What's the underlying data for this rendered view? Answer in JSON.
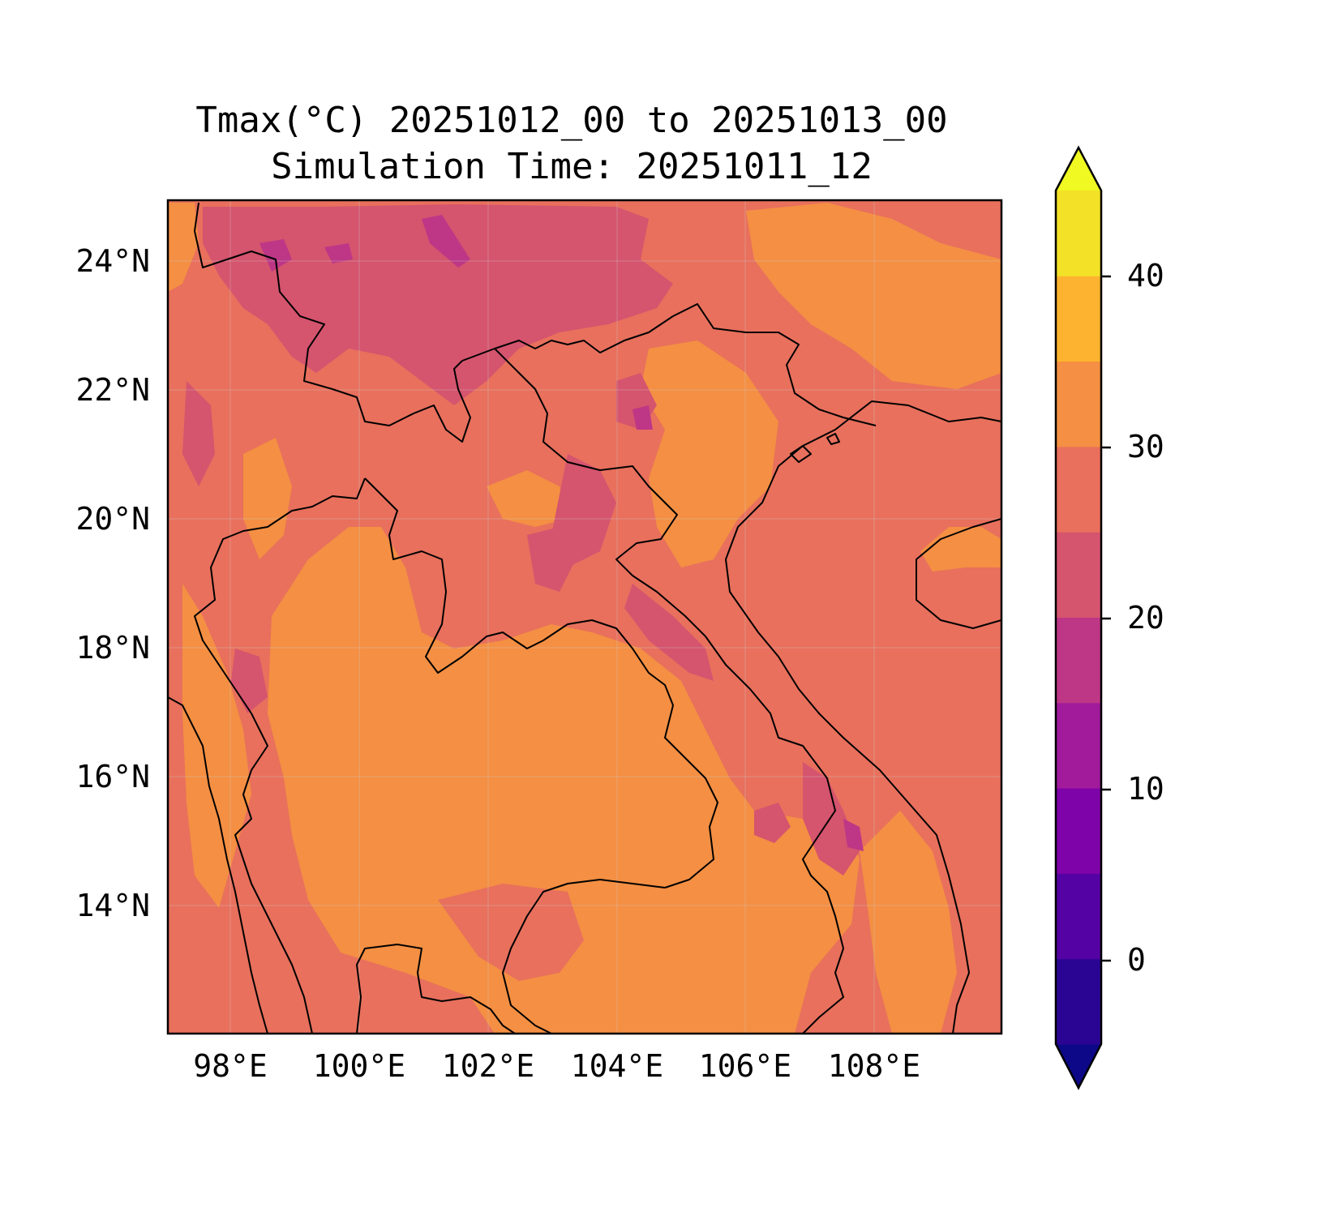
{
  "figure": {
    "title_line1": "Tmax(°C) 20251012_00 to 20251013_00",
    "title_line2": "Simulation Time: 20251011_12"
  },
  "map": {
    "region": "Indochina (Thailand, Laos, Vietnam, Cambodia)",
    "lon_range": [
      97,
      110
    ],
    "lat_range": [
      12,
      25
    ],
    "lon_ticks": [
      "98°E",
      "100°E",
      "102°E",
      "104°E",
      "106°E",
      "108°E"
    ],
    "lat_ticks": [
      "24°N",
      "22°N",
      "20°N",
      "18°N",
      "16°N",
      "14°N"
    ],
    "gridlines": true,
    "fill_levels_c": {
      "sea_and_lowland": "25-30",
      "central_plains": "30-35",
      "northern_highlands": "20-25",
      "highest_peaks": "15-20"
    }
  },
  "colorbar": {
    "ticks": [
      "40",
      "30",
      "20",
      "10",
      "0"
    ],
    "levels": [
      -5,
      0,
      5,
      10,
      15,
      20,
      25,
      30,
      35,
      40,
      45
    ],
    "extend": "both",
    "colors": [
      "#0d0887",
      "#2a0593",
      "#5402a3",
      "#7e03a8",
      "#a11b9b",
      "#bd3786",
      "#d5546e",
      "#e8705d",
      "#f48f43",
      "#fdb32f",
      "#f3e128",
      "#f0f921"
    ]
  },
  "chart_data": {
    "type": "heatmap",
    "title": "Tmax(°C) 20251012_00 to 20251013_00\nSimulation Time: 20251011_12",
    "xlabel": "",
    "ylabel": "",
    "xlim": [
      97,
      110
    ],
    "ylim": [
      12,
      25
    ],
    "colorbar_range": [
      -5,
      45
    ],
    "colorbar_ticks": [
      0,
      10,
      20,
      30,
      40
    ]
  }
}
